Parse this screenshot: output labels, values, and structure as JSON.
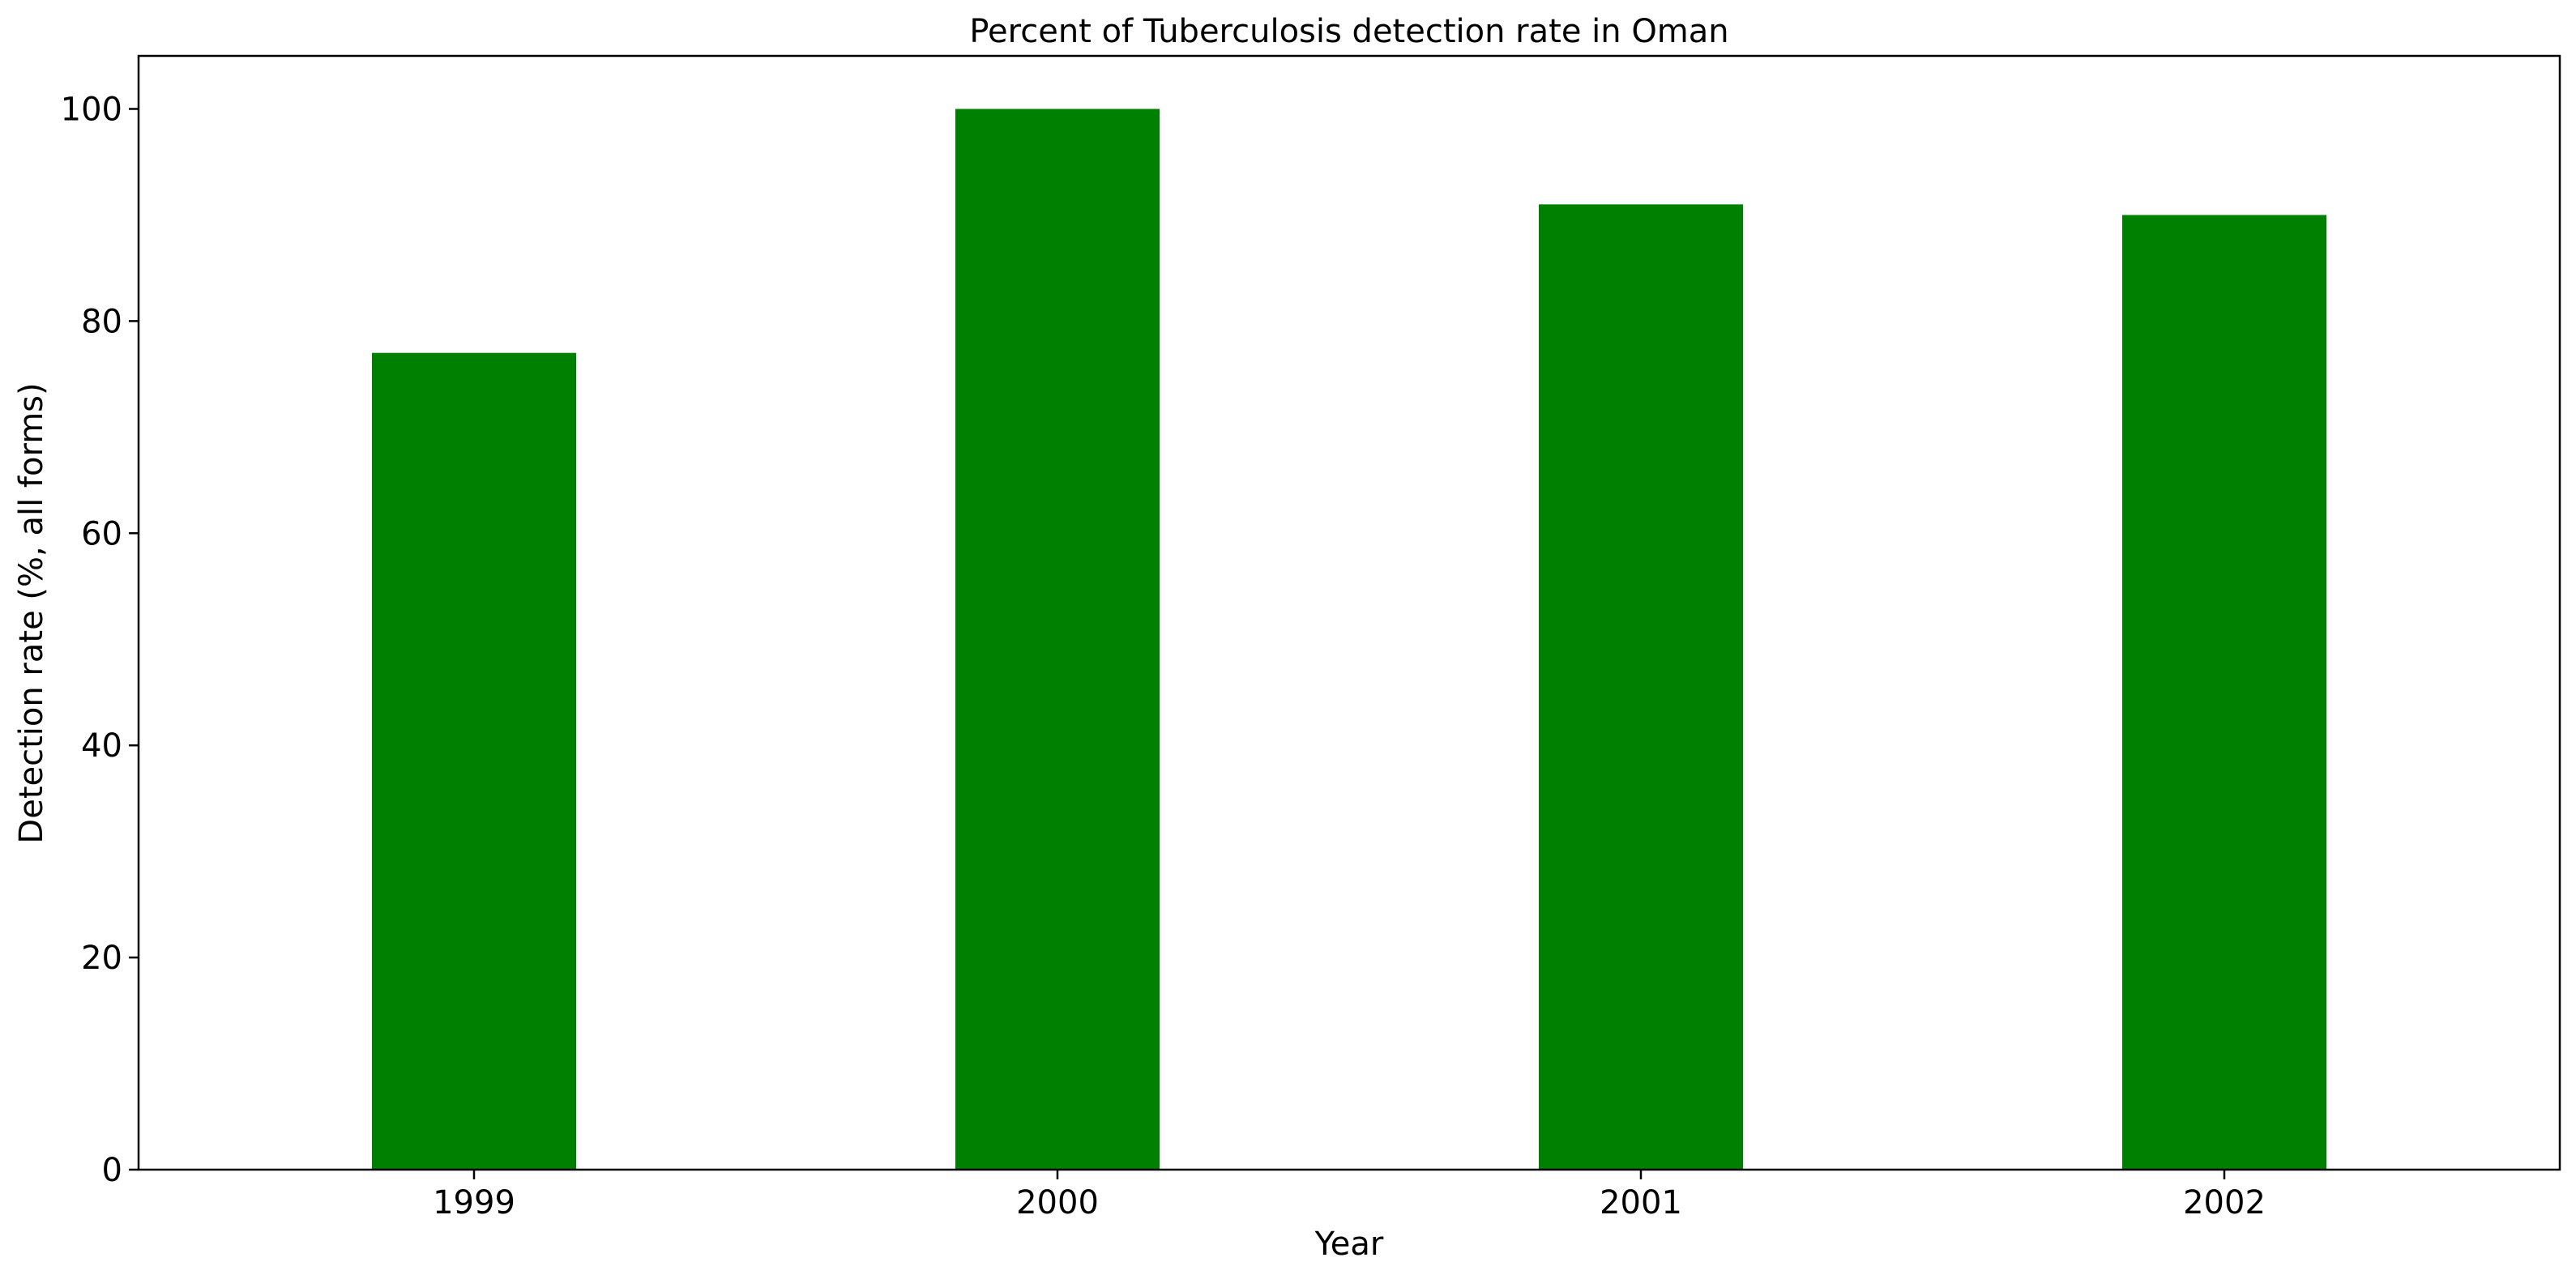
{
  "chart_data": {
    "type": "bar",
    "title": "Percent of Tuberculosis detection rate in Oman",
    "xlabel": "Year",
    "ylabel": "Detection rate (%, all forms)",
    "categories": [
      "1999",
      "2000",
      "2001",
      "2002"
    ],
    "values": [
      77,
      100,
      91,
      90
    ],
    "ylim": [
      0,
      105
    ],
    "yticks": [
      0,
      20,
      40,
      60,
      80,
      100
    ],
    "bar_color": "#008000",
    "grid": false,
    "legend": "none"
  }
}
